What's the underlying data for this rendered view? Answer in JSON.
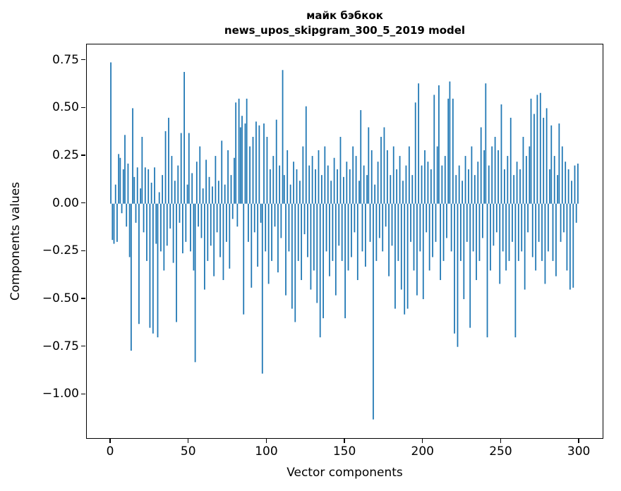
{
  "chart_data": {
    "type": "bar",
    "title_line1": "майк бэбкок",
    "title_line2": "news_upos_skipgram_300_5_2019 model",
    "xlabel": "Vector components",
    "ylabel": "Components values",
    "bar_color": "#1f77b4",
    "n_components": 300,
    "xlim": [
      -15.4,
      314.4
    ],
    "ylim": [
      -1.224,
      0.834
    ],
    "xticks": [
      0,
      50,
      100,
      150,
      200,
      250,
      300
    ],
    "yticks": [
      0.75,
      0.5,
      0.25,
      0.0,
      -0.25,
      -0.5,
      -0.75,
      -1.0
    ],
    "ytick_labels": [
      "0.75",
      "0.50",
      "0.25",
      "0.00",
      "−0.25",
      "−0.50",
      "−0.75",
      "−1.00"
    ],
    "grid": false,
    "legend": "none",
    "values": [
      0.74,
      -0.19,
      -0.21,
      0.1,
      -0.2,
      0.26,
      0.24,
      -0.05,
      0.18,
      0.36,
      -0.12,
      0.21,
      -0.28,
      -0.77,
      0.5,
      0.14,
      -0.1,
      0.19,
      -0.63,
      0.08,
      0.35,
      -0.15,
      0.19,
      -0.3,
      0.18,
      -0.65,
      0.11,
      -0.68,
      0.19,
      -0.21,
      -0.7,
      0.06,
      -0.25,
      0.15,
      -0.35,
      0.38,
      -0.22,
      0.45,
      -0.13,
      0.25,
      -0.31,
      0.12,
      -0.62,
      0.2,
      -0.1,
      0.37,
      -0.26,
      0.69,
      -0.2,
      0.1,
      0.37,
      -0.25,
      0.16,
      -0.35,
      -0.83,
      0.22,
      -0.12,
      0.3,
      -0.18,
      0.08,
      -0.45,
      0.23,
      -0.3,
      0.14,
      -0.22,
      0.09,
      -0.38,
      0.25,
      -0.15,
      0.12,
      -0.28,
      0.33,
      -0.4,
      0.1,
      -0.2,
      0.28,
      -0.34,
      0.15,
      -0.08,
      0.24,
      0.53,
      -0.12,
      0.55,
      0.4,
      0.46,
      -0.58,
      0.42,
      0.55,
      -0.2,
      0.3,
      -0.44,
      0.35,
      -0.15,
      0.43,
      -0.33,
      0.41,
      -0.1,
      -0.89,
      0.42,
      -0.25,
      0.35,
      -0.42,
      0.18,
      -0.3,
      0.25,
      -0.12,
      0.44,
      -0.36,
      0.2,
      -0.18,
      0.7,
      0.15,
      -0.48,
      0.28,
      -0.25,
      0.1,
      -0.55,
      0.22,
      -0.62,
      0.18,
      -0.3,
      0.12,
      -0.4,
      0.3,
      -0.16,
      0.51,
      -0.28,
      0.2,
      -0.45,
      0.25,
      -0.35,
      0.18,
      -0.52,
      0.28,
      -0.7,
      0.15,
      -0.6,
      0.3,
      -0.25,
      0.2,
      -0.38,
      0.12,
      -0.3,
      0.24,
      -0.48,
      0.18,
      -0.22,
      0.35,
      -0.3,
      0.14,
      -0.6,
      0.22,
      -0.35,
      0.18,
      -0.28,
      0.3,
      -0.15,
      0.25,
      -0.4,
      0.12,
      0.49,
      -0.25,
      0.2,
      -0.33,
      0.15,
      0.4,
      -0.2,
      0.28,
      -1.13,
      0.1,
      -0.3,
      0.22,
      -0.18,
      0.35,
      -0.25,
      0.4,
      -0.12,
      0.28,
      -0.38,
      0.15,
      -0.22,
      0.3,
      -0.55,
      0.18,
      -0.3,
      0.25,
      -0.45,
      0.12,
      -0.58,
      0.2,
      -0.55,
      0.3,
      -0.2,
      0.15,
      -0.35,
      0.53,
      -0.48,
      0.63,
      -0.25,
      0.2,
      -0.5,
      0.28,
      -0.15,
      0.22,
      -0.35,
      0.18,
      -0.28,
      0.57,
      -0.2,
      0.3,
      0.62,
      -0.4,
      0.2,
      -0.3,
      0.25,
      -0.18,
      0.55,
      0.64,
      -0.25,
      0.55,
      -0.68,
      0.15,
      -0.75,
      0.2,
      -0.3,
      0.12,
      -0.5,
      0.25,
      -0.2,
      0.18,
      -0.65,
      0.3,
      -0.25,
      0.15,
      -0.4,
      0.22,
      -0.3,
      0.4,
      -0.18,
      0.28,
      0.63,
      -0.7,
      0.2,
      -0.35,
      0.3,
      -0.22,
      0.35,
      -0.15,
      0.28,
      -0.42,
      0.52,
      -0.25,
      0.18,
      -0.35,
      0.25,
      -0.3,
      0.45,
      -0.2,
      0.15,
      -0.7,
      0.22,
      -0.3,
      0.18,
      -0.25,
      0.35,
      -0.45,
      0.25,
      -0.15,
      0.3,
      0.55,
      -0.28,
      0.47,
      -0.35,
      0.57,
      -0.2,
      0.58,
      -0.3,
      0.45,
      -0.42,
      0.5,
      -0.25,
      0.18,
      0.41,
      -0.3,
      0.25,
      -0.38,
      0.15,
      0.42,
      -0.2,
      0.3,
      -0.15,
      0.22,
      -0.35,
      0.18,
      -0.45,
      0.12,
      -0.44,
      0.2,
      -0.1,
      0.21
    ]
  }
}
